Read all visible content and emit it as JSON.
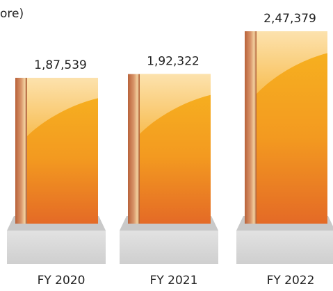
{
  "chart_data": {
    "type": "bar",
    "title": "ore)",
    "categories": [
      "FY 2020",
      "FY 2021",
      "FY 2022"
    ],
    "values": [
      187539,
      192322,
      247379
    ],
    "value_labels": [
      "1,87,539",
      "1,92,322",
      "2,47,379"
    ],
    "color": "#ef8c22"
  }
}
